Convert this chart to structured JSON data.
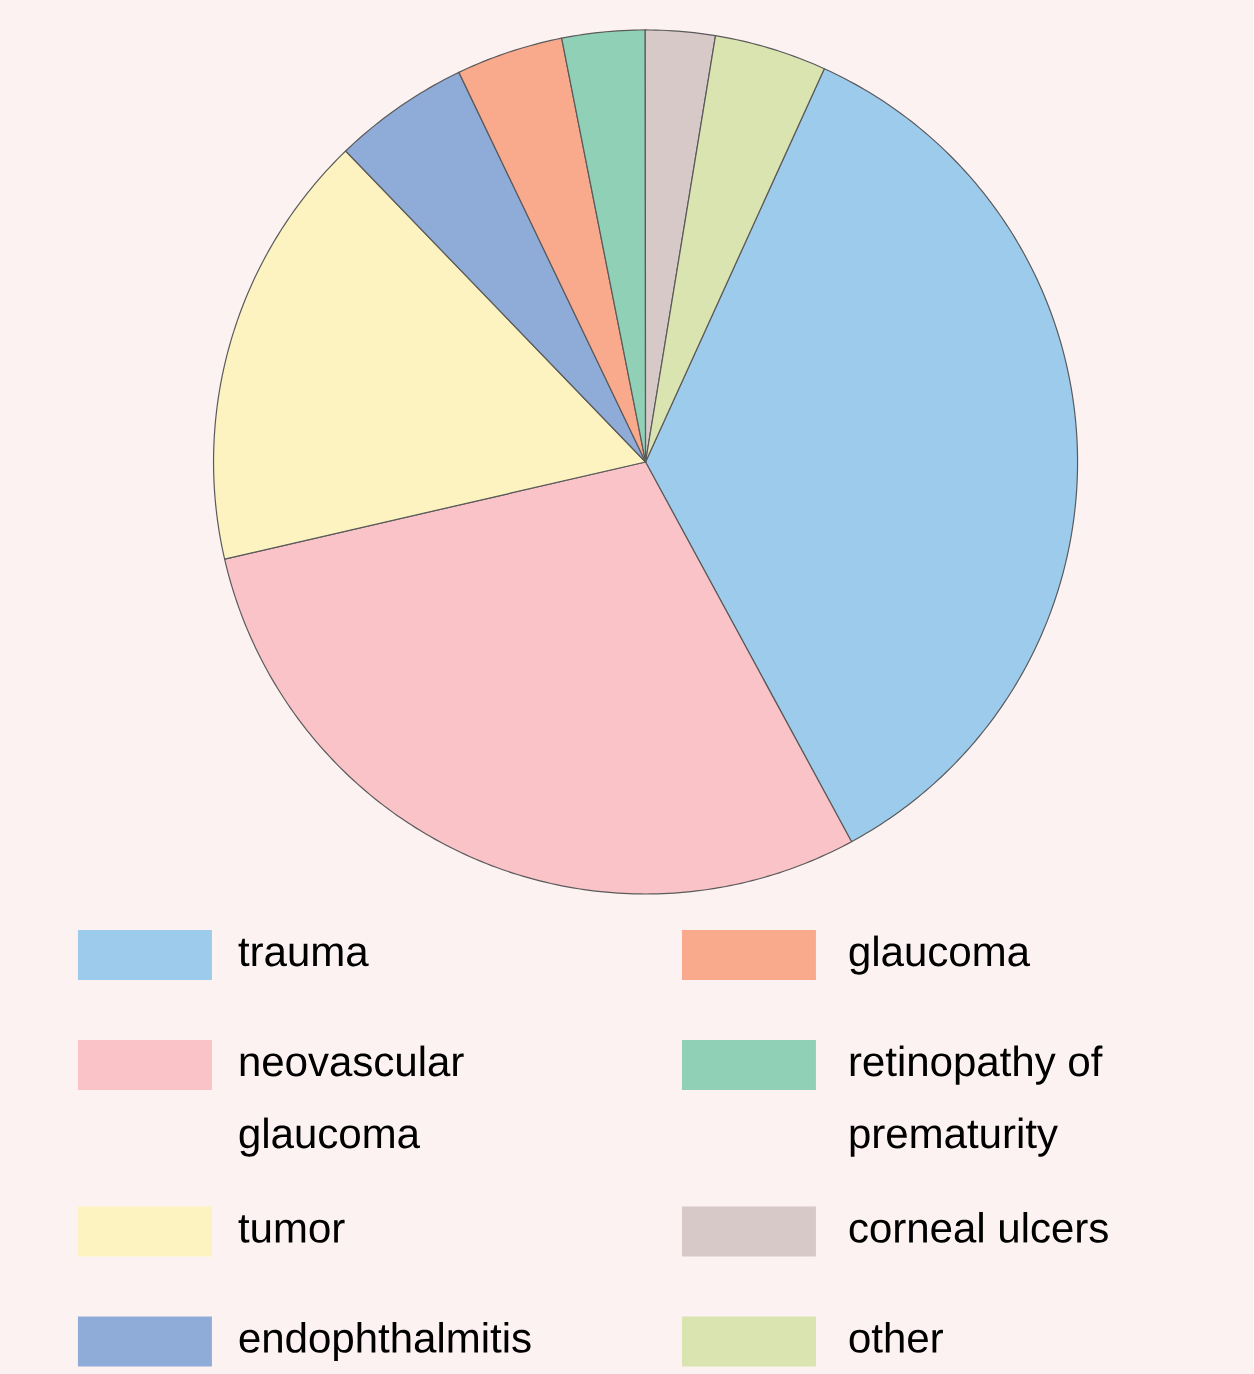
{
  "chart_data": {
    "type": "pie",
    "categories": [
      "trauma",
      "neovascular glaucoma",
      "tumor",
      "endophthalmitis",
      "glaucoma",
      "retinopathy of prematurity",
      "corneal ulcers",
      "other"
    ],
    "values": [
      35.3,
      29.3,
      16.4,
      5.1,
      4.0,
      3.1,
      2.6,
      4.2
    ],
    "colors": [
      "#9dcbec",
      "#f9c3c8",
      "#fcf3c0",
      "#8facd9",
      "#f9a98c",
      "#8fd0b7",
      "#d6c9c7",
      "#d9e4b0"
    ],
    "legend": "bottom"
  }
}
